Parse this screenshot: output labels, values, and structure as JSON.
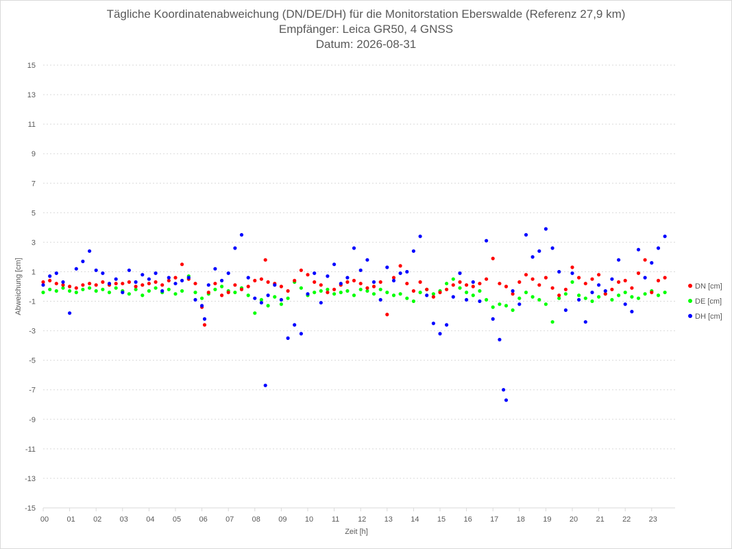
{
  "chart_data": {
    "type": "scatter",
    "title": "Tägliche Koordinatenabweichung (DN/DE/DH) für die Monitorstation Eberswalde (Referenz 27,9 km)",
    "subtitle_lines": [
      "Empfänger: Leica GR50, 4 GNSS",
      "Datum: 2026-08-31"
    ],
    "xlabel": "Zeit [h]",
    "ylabel": "Abweichung [cm]",
    "xlim": [
      0,
      24
    ],
    "ylim": [
      -15,
      15
    ],
    "x_ticks": [
      "00",
      "01",
      "02",
      "03",
      "04",
      "05",
      "06",
      "07",
      "08",
      "09",
      "10",
      "11",
      "12",
      "13",
      "14",
      "15",
      "16",
      "17",
      "18",
      "19",
      "20",
      "21",
      "22",
      "23"
    ],
    "y_ticks": [
      "15",
      "13",
      "11",
      "9",
      "7",
      "5",
      "3",
      "1",
      "-1",
      "-3",
      "-5",
      "-7",
      "-9",
      "-11",
      "-13",
      "-15"
    ],
    "grid": true,
    "legend_position": "right",
    "series": [
      {
        "name": "DN [cm]",
        "color": "#ff0000",
        "points": [
          [
            0.0,
            0.3
          ],
          [
            0.25,
            0.4
          ],
          [
            0.5,
            0.2
          ],
          [
            0.75,
            0.1
          ],
          [
            1.0,
            0.0
          ],
          [
            1.25,
            -0.1
          ],
          [
            1.5,
            0.1
          ],
          [
            1.75,
            0.2
          ],
          [
            2.0,
            0.1
          ],
          [
            2.25,
            0.3
          ],
          [
            2.5,
            0.1
          ],
          [
            2.75,
            0.2
          ],
          [
            3.0,
            0.2
          ],
          [
            3.25,
            0.3
          ],
          [
            3.5,
            0.0
          ],
          [
            3.75,
            0.1
          ],
          [
            4.0,
            0.2
          ],
          [
            4.25,
            0.3
          ],
          [
            4.5,
            0.1
          ],
          [
            4.75,
            0.4
          ],
          [
            5.0,
            0.6
          ],
          [
            5.25,
            1.5
          ],
          [
            5.5,
            0.5
          ],
          [
            5.75,
            0.2
          ],
          [
            6.0,
            -1.4
          ],
          [
            6.1,
            -2.6
          ],
          [
            6.25,
            -0.4
          ],
          [
            6.5,
            0.2
          ],
          [
            6.75,
            -0.6
          ],
          [
            7.0,
            -0.4
          ],
          [
            7.25,
            0.1
          ],
          [
            7.5,
            -0.2
          ],
          [
            7.75,
            0.0
          ],
          [
            8.0,
            0.4
          ],
          [
            8.25,
            0.5
          ],
          [
            8.4,
            1.8
          ],
          [
            8.5,
            0.3
          ],
          [
            8.75,
            0.2
          ],
          [
            9.0,
            0.0
          ],
          [
            9.25,
            -0.3
          ],
          [
            9.5,
            0.4
          ],
          [
            9.75,
            1.1
          ],
          [
            10.0,
            0.8
          ],
          [
            10.25,
            0.3
          ],
          [
            10.5,
            0.1
          ],
          [
            10.75,
            -0.4
          ],
          [
            11.0,
            -0.2
          ],
          [
            11.25,
            0.1
          ],
          [
            11.5,
            0.3
          ],
          [
            11.75,
            0.4
          ],
          [
            12.0,
            0.2
          ],
          [
            12.25,
            -0.1
          ],
          [
            12.5,
            0.0
          ],
          [
            12.75,
            0.3
          ],
          [
            13.0,
            -1.9
          ],
          [
            13.25,
            0.6
          ],
          [
            13.5,
            1.4
          ],
          [
            13.75,
            0.2
          ],
          [
            14.0,
            -0.3
          ],
          [
            14.25,
            0.3
          ],
          [
            14.5,
            -0.2
          ],
          [
            14.75,
            -0.7
          ],
          [
            15.0,
            -0.4
          ],
          [
            15.25,
            -0.2
          ],
          [
            15.5,
            0.1
          ],
          [
            15.75,
            0.3
          ],
          [
            16.0,
            0.1
          ],
          [
            16.25,
            0.0
          ],
          [
            16.5,
            0.2
          ],
          [
            16.75,
            0.5
          ],
          [
            17.0,
            1.9
          ],
          [
            17.25,
            0.2
          ],
          [
            17.5,
            0.0
          ],
          [
            17.75,
            -0.5
          ],
          [
            18.0,
            0.3
          ],
          [
            18.25,
            0.8
          ],
          [
            18.5,
            0.5
          ],
          [
            18.75,
            0.1
          ],
          [
            19.0,
            0.6
          ],
          [
            19.25,
            -0.1
          ],
          [
            19.5,
            -0.6
          ],
          [
            19.75,
            -0.2
          ],
          [
            20.0,
            1.3
          ],
          [
            20.25,
            0.6
          ],
          [
            20.5,
            0.2
          ],
          [
            20.75,
            0.5
          ],
          [
            21.0,
            0.8
          ],
          [
            21.25,
            -0.5
          ],
          [
            21.5,
            -0.2
          ],
          [
            21.75,
            0.3
          ],
          [
            22.0,
            0.4
          ],
          [
            22.25,
            -0.1
          ],
          [
            22.5,
            0.9
          ],
          [
            22.75,
            1.8
          ],
          [
            23.0,
            -0.4
          ],
          [
            23.25,
            0.4
          ],
          [
            23.5,
            0.6
          ]
        ]
      },
      {
        "name": "DE [cm]",
        "color": "#00ff00",
        "points": [
          [
            0.0,
            -0.4
          ],
          [
            0.25,
            -0.2
          ],
          [
            0.5,
            -0.3
          ],
          [
            0.75,
            -0.1
          ],
          [
            1.0,
            -0.3
          ],
          [
            1.25,
            -0.4
          ],
          [
            1.5,
            -0.2
          ],
          [
            1.75,
            -0.1
          ],
          [
            2.0,
            -0.3
          ],
          [
            2.25,
            -0.2
          ],
          [
            2.5,
            -0.4
          ],
          [
            2.75,
            -0.1
          ],
          [
            3.0,
            -0.3
          ],
          [
            3.25,
            -0.5
          ],
          [
            3.5,
            -0.2
          ],
          [
            3.75,
            -0.6
          ],
          [
            4.0,
            -0.3
          ],
          [
            4.25,
            -0.1
          ],
          [
            4.5,
            -0.4
          ],
          [
            4.75,
            -0.2
          ],
          [
            5.0,
            -0.5
          ],
          [
            5.25,
            -0.3
          ],
          [
            5.5,
            0.7
          ],
          [
            5.75,
            -0.4
          ],
          [
            6.0,
            -0.8
          ],
          [
            6.25,
            -0.5
          ],
          [
            6.5,
            -0.2
          ],
          [
            6.75,
            0.0
          ],
          [
            7.0,
            -0.3
          ],
          [
            7.25,
            -0.4
          ],
          [
            7.5,
            -0.1
          ],
          [
            7.75,
            -0.6
          ],
          [
            8.0,
            -1.8
          ],
          [
            8.25,
            -0.9
          ],
          [
            8.5,
            -1.3
          ],
          [
            8.75,
            -0.7
          ],
          [
            9.0,
            -1.2
          ],
          [
            9.25,
            -0.8
          ],
          [
            9.5,
            0.3
          ],
          [
            9.75,
            -0.1
          ],
          [
            10.0,
            -0.6
          ],
          [
            10.25,
            -0.4
          ],
          [
            10.5,
            -0.3
          ],
          [
            10.75,
            -0.2
          ],
          [
            11.0,
            -0.5
          ],
          [
            11.25,
            -0.4
          ],
          [
            11.5,
            -0.3
          ],
          [
            11.75,
            -0.6
          ],
          [
            12.0,
            -0.2
          ],
          [
            12.25,
            -0.3
          ],
          [
            12.5,
            -0.5
          ],
          [
            12.75,
            -0.2
          ],
          [
            13.0,
            -0.4
          ],
          [
            13.25,
            -0.6
          ],
          [
            13.5,
            -0.5
          ],
          [
            13.75,
            -0.8
          ],
          [
            14.0,
            -1.0
          ],
          [
            14.25,
            -0.4
          ],
          [
            14.5,
            -0.2
          ],
          [
            14.75,
            -0.5
          ],
          [
            15.0,
            -0.3
          ],
          [
            15.25,
            0.2
          ],
          [
            15.5,
            0.5
          ],
          [
            15.75,
            -0.1
          ],
          [
            16.0,
            -0.4
          ],
          [
            16.25,
            -0.6
          ],
          [
            16.5,
            -0.3
          ],
          [
            16.75,
            -0.9
          ],
          [
            17.0,
            -1.4
          ],
          [
            17.25,
            -1.2
          ],
          [
            17.5,
            -1.3
          ],
          [
            17.75,
            -1.6
          ],
          [
            18.0,
            -0.8
          ],
          [
            18.25,
            -0.4
          ],
          [
            18.5,
            -0.7
          ],
          [
            18.75,
            -0.9
          ],
          [
            19.0,
            -1.2
          ],
          [
            19.25,
            -2.4
          ],
          [
            19.5,
            -0.8
          ],
          [
            19.75,
            -0.5
          ],
          [
            20.0,
            0.3
          ],
          [
            20.25,
            -0.6
          ],
          [
            20.5,
            -0.8
          ],
          [
            20.75,
            -1.0
          ],
          [
            21.0,
            -0.7
          ],
          [
            21.25,
            -0.5
          ],
          [
            21.5,
            -0.9
          ],
          [
            21.75,
            -0.6
          ],
          [
            22.0,
            -0.4
          ],
          [
            22.25,
            -0.7
          ],
          [
            22.5,
            -0.8
          ],
          [
            22.75,
            -0.5
          ],
          [
            23.0,
            -0.3
          ],
          [
            23.25,
            -0.6
          ],
          [
            23.5,
            -0.4
          ]
        ]
      },
      {
        "name": "DH [cm]",
        "color": "#0000ff",
        "points": [
          [
            0.0,
            0.1
          ],
          [
            0.25,
            0.7
          ],
          [
            0.5,
            0.9
          ],
          [
            0.75,
            0.3
          ],
          [
            1.0,
            -1.8
          ],
          [
            1.25,
            1.2
          ],
          [
            1.5,
            1.7
          ],
          [
            1.75,
            2.4
          ],
          [
            2.0,
            1.1
          ],
          [
            2.25,
            0.9
          ],
          [
            2.5,
            0.2
          ],
          [
            2.75,
            0.5
          ],
          [
            3.0,
            -0.4
          ],
          [
            3.25,
            1.1
          ],
          [
            3.5,
            0.3
          ],
          [
            3.75,
            0.8
          ],
          [
            4.0,
            0.5
          ],
          [
            4.25,
            0.9
          ],
          [
            4.5,
            -0.3
          ],
          [
            4.75,
            0.6
          ],
          [
            5.0,
            0.2
          ],
          [
            5.25,
            0.4
          ],
          [
            5.5,
            0.6
          ],
          [
            5.75,
            -0.9
          ],
          [
            6.0,
            -1.3
          ],
          [
            6.1,
            -2.2
          ],
          [
            6.25,
            0.1
          ],
          [
            6.5,
            1.2
          ],
          [
            6.75,
            0.4
          ],
          [
            7.0,
            0.9
          ],
          [
            7.25,
            2.6
          ],
          [
            7.5,
            3.5
          ],
          [
            7.75,
            0.6
          ],
          [
            8.0,
            -0.8
          ],
          [
            8.25,
            -1.1
          ],
          [
            8.4,
            -6.7
          ],
          [
            8.5,
            -0.6
          ],
          [
            8.75,
            0.1
          ],
          [
            9.0,
            -0.9
          ],
          [
            9.25,
            -3.5
          ],
          [
            9.5,
            -2.6
          ],
          [
            9.75,
            -3.2
          ],
          [
            10.0,
            -0.5
          ],
          [
            10.25,
            0.9
          ],
          [
            10.5,
            -1.1
          ],
          [
            10.75,
            0.7
          ],
          [
            11.0,
            1.5
          ],
          [
            11.25,
            0.2
          ],
          [
            11.5,
            0.6
          ],
          [
            11.75,
            2.6
          ],
          [
            12.0,
            1.1
          ],
          [
            12.25,
            1.8
          ],
          [
            12.5,
            0.3
          ],
          [
            12.75,
            -0.9
          ],
          [
            13.0,
            1.3
          ],
          [
            13.25,
            0.4
          ],
          [
            13.5,
            0.9
          ],
          [
            13.75,
            1.0
          ],
          [
            14.0,
            2.4
          ],
          [
            14.25,
            3.4
          ],
          [
            14.5,
            -0.6
          ],
          [
            14.75,
            -2.5
          ],
          [
            15.0,
            -3.2
          ],
          [
            15.25,
            -2.6
          ],
          [
            15.5,
            -0.7
          ],
          [
            15.75,
            0.9
          ],
          [
            16.0,
            -0.9
          ],
          [
            16.25,
            0.3
          ],
          [
            16.5,
            -1.0
          ],
          [
            16.75,
            3.1
          ],
          [
            17.0,
            -2.2
          ],
          [
            17.25,
            -3.6
          ],
          [
            17.4,
            -7.0
          ],
          [
            17.5,
            -7.7
          ],
          [
            17.75,
            -0.3
          ],
          [
            18.0,
            -1.2
          ],
          [
            18.25,
            3.5
          ],
          [
            18.5,
            2.0
          ],
          [
            18.75,
            2.4
          ],
          [
            19.0,
            3.9
          ],
          [
            19.25,
            2.6
          ],
          [
            19.5,
            1.0
          ],
          [
            19.75,
            -1.6
          ],
          [
            20.0,
            0.9
          ],
          [
            20.25,
            -0.9
          ],
          [
            20.5,
            -2.4
          ],
          [
            20.75,
            -0.4
          ],
          [
            21.0,
            0.1
          ],
          [
            21.25,
            -0.3
          ],
          [
            21.5,
            0.5
          ],
          [
            21.75,
            1.8
          ],
          [
            22.0,
            -1.2
          ],
          [
            22.25,
            -1.7
          ],
          [
            22.5,
            2.5
          ],
          [
            22.75,
            0.6
          ],
          [
            23.0,
            1.6
          ],
          [
            23.25,
            2.6
          ],
          [
            23.5,
            3.4
          ]
        ]
      }
    ]
  }
}
